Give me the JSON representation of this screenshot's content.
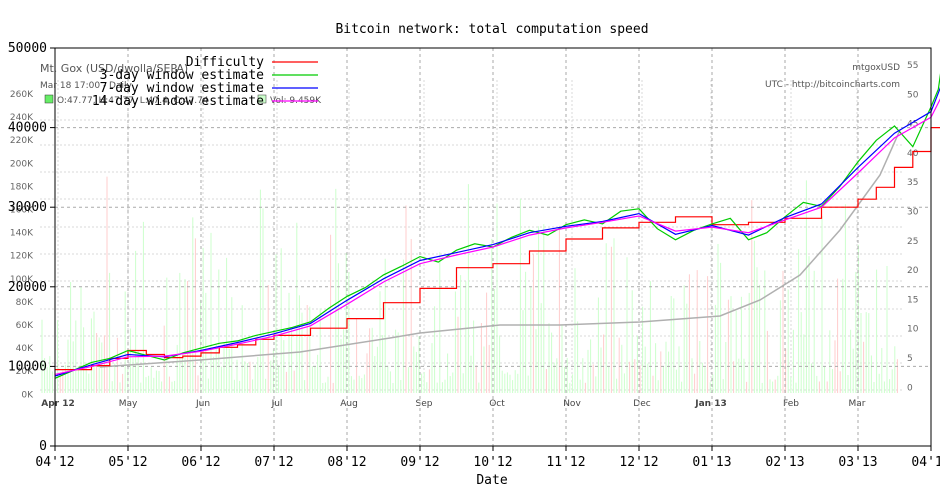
{
  "chart_data": {
    "type": "line",
    "title": "Bitcoin network: total computation speed",
    "xlabel": "Date",
    "x_ticks": [
      "04'12",
      "05'12",
      "06'12",
      "07'12",
      "08'12",
      "09'12",
      "10'12",
      "11'12",
      "12'12",
      "01'13",
      "02'13",
      "03'13",
      "04'13"
    ],
    "y_ticks": [
      0,
      10000,
      20000,
      30000,
      40000,
      50000
    ],
    "ylim": [
      0,
      50000
    ],
    "grid": true,
    "legend": {
      "placement": "top-left",
      "entries": [
        {
          "label": "Difficulty",
          "color": "#ff0000"
        },
        {
          "label": "3-day window estimate",
          "color": "#00cc00"
        },
        {
          "label": "7-day window estimate",
          "color": "#0000ff"
        },
        {
          "label": "14-day window estimate",
          "color": "#ff00ff"
        }
      ]
    },
    "series": [
      {
        "name": "Difficulty",
        "color": "#ff0000",
        "step": true,
        "points": [
          [
            0.0,
            9600
          ],
          [
            0.5,
            10100
          ],
          [
            0.75,
            11000
          ],
          [
            1.0,
            12000
          ],
          [
            1.25,
            11500
          ],
          [
            1.5,
            11100
          ],
          [
            1.75,
            11300
          ],
          [
            2.0,
            11700
          ],
          [
            2.25,
            12400
          ],
          [
            2.5,
            12700
          ],
          [
            2.75,
            13400
          ],
          [
            3.0,
            13900
          ],
          [
            3.5,
            14800
          ],
          [
            4.0,
            16000
          ],
          [
            4.5,
            18000
          ],
          [
            5.0,
            19800
          ],
          [
            5.5,
            22400
          ],
          [
            6.0,
            22900
          ],
          [
            6.5,
            24500
          ],
          [
            7.0,
            26000
          ],
          [
            7.5,
            27400
          ],
          [
            8.0,
            28100
          ],
          [
            8.5,
            28800
          ],
          [
            9.0,
            27800
          ],
          [
            9.5,
            28100
          ],
          [
            10.0,
            28600
          ],
          [
            10.5,
            30000
          ],
          [
            11.0,
            31000
          ],
          [
            11.25,
            32500
          ],
          [
            11.5,
            35000
          ],
          [
            11.75,
            37000
          ],
          [
            12.0,
            40000
          ],
          [
            12.15,
            41000
          ]
        ]
      },
      {
        "name": "3-day window estimate",
        "color": "#00cc00",
        "points": [
          [
            0.0,
            8500
          ],
          [
            0.25,
            9500
          ],
          [
            0.5,
            10500
          ],
          [
            0.75,
            11000
          ],
          [
            1.0,
            12000
          ],
          [
            1.25,
            11400
          ],
          [
            1.5,
            10800
          ],
          [
            1.75,
            11700
          ],
          [
            2.0,
            12300
          ],
          [
            2.25,
            12900
          ],
          [
            2.5,
            13200
          ],
          [
            2.75,
            13900
          ],
          [
            3.0,
            14400
          ],
          [
            3.25,
            14900
          ],
          [
            3.5,
            15600
          ],
          [
            3.75,
            17300
          ],
          [
            4.0,
            18800
          ],
          [
            4.25,
            19900
          ],
          [
            4.5,
            21500
          ],
          [
            4.75,
            22600
          ],
          [
            5.0,
            23800
          ],
          [
            5.25,
            23100
          ],
          [
            5.5,
            24600
          ],
          [
            5.75,
            25400
          ],
          [
            6.0,
            25000
          ],
          [
            6.25,
            26200
          ],
          [
            6.5,
            27100
          ],
          [
            6.75,
            26500
          ],
          [
            7.0,
            27800
          ],
          [
            7.25,
            28400
          ],
          [
            7.5,
            27900
          ],
          [
            7.75,
            29500
          ],
          [
            8.0,
            29800
          ],
          [
            8.25,
            27300
          ],
          [
            8.5,
            25900
          ],
          [
            8.75,
            27100
          ],
          [
            9.0,
            27900
          ],
          [
            9.25,
            28600
          ],
          [
            9.5,
            25900
          ],
          [
            9.75,
            26800
          ],
          [
            10.0,
            28800
          ],
          [
            10.25,
            30600
          ],
          [
            10.5,
            30100
          ],
          [
            10.75,
            32600
          ],
          [
            11.0,
            35700
          ],
          [
            11.25,
            38400
          ],
          [
            11.5,
            40200
          ],
          [
            11.75,
            37600
          ],
          [
            12.0,
            42600
          ],
          [
            12.1,
            44800
          ],
          [
            12.15,
            48000
          ]
        ]
      },
      {
        "name": "7-day window estimate",
        "color": "#0000ff",
        "points": [
          [
            0.0,
            8800
          ],
          [
            0.5,
            10200
          ],
          [
            1.0,
            11500
          ],
          [
            1.5,
            11200
          ],
          [
            2.0,
            12000
          ],
          [
            2.5,
            13000
          ],
          [
            3.0,
            14100
          ],
          [
            3.5,
            15400
          ],
          [
            4.0,
            18300
          ],
          [
            4.5,
            21000
          ],
          [
            5.0,
            23300
          ],
          [
            5.5,
            24300
          ],
          [
            6.0,
            25300
          ],
          [
            6.5,
            26800
          ],
          [
            7.0,
            27600
          ],
          [
            7.5,
            28200
          ],
          [
            8.0,
            29200
          ],
          [
            8.5,
            26600
          ],
          [
            9.0,
            27700
          ],
          [
            9.5,
            26500
          ],
          [
            10.0,
            28700
          ],
          [
            10.5,
            30400
          ],
          [
            11.0,
            35000
          ],
          [
            11.5,
            39300
          ],
          [
            12.0,
            42000
          ],
          [
            12.15,
            45500
          ]
        ]
      },
      {
        "name": "14-day window estimate",
        "color": "#ff00ff",
        "points": [
          [
            0.0,
            9000
          ],
          [
            0.5,
            10000
          ],
          [
            1.0,
            11200
          ],
          [
            1.5,
            11300
          ],
          [
            2.0,
            11900
          ],
          [
            2.5,
            12800
          ],
          [
            3.0,
            13800
          ],
          [
            3.5,
            15100
          ],
          [
            4.0,
            17800
          ],
          [
            4.5,
            20600
          ],
          [
            5.0,
            22900
          ],
          [
            5.5,
            24000
          ],
          [
            6.0,
            25000
          ],
          [
            6.5,
            26500
          ],
          [
            7.0,
            27400
          ],
          [
            7.5,
            28100
          ],
          [
            8.0,
            28900
          ],
          [
            8.5,
            27000
          ],
          [
            9.0,
            27500
          ],
          [
            9.5,
            26800
          ],
          [
            10.0,
            28400
          ],
          [
            10.5,
            30000
          ],
          [
            11.0,
            34300
          ],
          [
            11.5,
            38700
          ],
          [
            12.0,
            41300
          ],
          [
            12.15,
            44000
          ]
        ]
      }
    ]
  },
  "overlay": {
    "title": "Mt. Gox (USD/dwolla/SEPA)",
    "subtitle": "Mar 18 17:00 - Daily",
    "ohlc_line": "O:47.77, H:47.77, L:47.4, C:47.74",
    "volume_line": "Vol: 9.459K",
    "symbol": "mtgoxUSD",
    "source": "UTC - http://bitcoincharts.com",
    "price_ticks": [
      "55",
      "50",
      "45",
      "40",
      "35",
      "30",
      "25",
      "20",
      "15",
      "10",
      "5",
      "0"
    ],
    "volume_ticks": [
      "260K",
      "240K",
      "220K",
      "200K",
      "180K",
      "160K",
      "140K",
      "120K",
      "100K",
      "80K",
      "60K",
      "40K",
      "20K",
      "0K"
    ],
    "month_labels": [
      "Apr 12",
      "May",
      "Jun",
      "Jul",
      "Aug",
      "Sep",
      "Oct",
      "Nov",
      "Dec",
      "Jan 13",
      "Feb",
      "Mar"
    ],
    "price_series_color": "#00dd00",
    "moving_average_color": "#9999ff",
    "volume_color": "#ccffcc"
  }
}
